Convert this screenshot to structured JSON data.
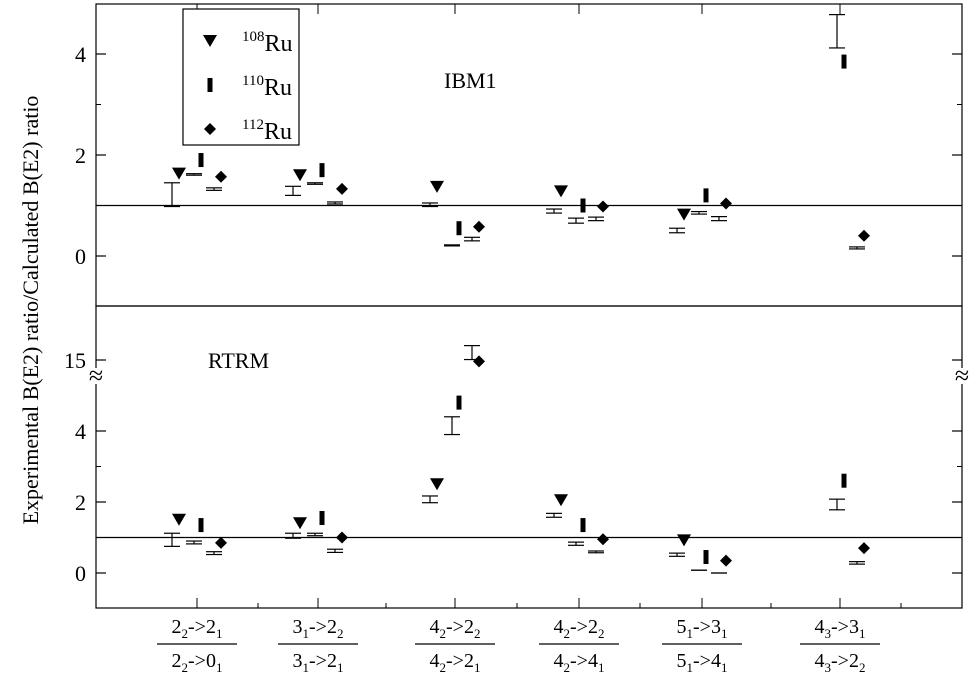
{
  "chart_data": [
    {
      "panel": "top",
      "type": "scatter",
      "tag": "IBM1",
      "ylim": [
        -1,
        5
      ],
      "y_ticks": [
        0,
        2,
        4
      ],
      "reference_line": 1,
      "categories": [
        "2_2->2_1 / 2_2->0_1",
        "3_1->2_2 / 3_1->2_1",
        "4_2->2_2 / 4_2->2_1",
        "4_2->2_2 / 4_2->4_1",
        "5_1->3_1 / 5_1->4_1",
        "4_3->3_1 / 4_3->2_2"
      ],
      "series": [
        {
          "name": "108Ru",
          "marker": "triangle-down",
          "values": [
            1.63,
            1.6,
            1.37,
            1.28,
            0.82,
            null
          ],
          "error_lo": [
            0.98,
            1.2,
            0.98,
            0.85,
            0.46,
            null
          ],
          "error_hi": [
            1.45,
            1.38,
            1.05,
            0.93,
            0.55,
            null
          ]
        },
        {
          "name": "110Ru",
          "marker": "bar",
          "values": [
            1.9,
            1.7,
            0.55,
            1.0,
            1.2,
            3.85
          ],
          "error_lo": [
            1.6,
            1.42,
            0.2,
            0.65,
            0.83,
            4.12
          ],
          "error_hi": [
            1.63,
            1.45,
            0.22,
            0.75,
            0.88,
            4.78
          ]
        },
        {
          "name": "112Ru",
          "marker": "diamond",
          "values": [
            1.57,
            1.33,
            0.58,
            0.98,
            1.04,
            0.4
          ],
          "error_lo": [
            1.3,
            1.03,
            0.3,
            0.7,
            0.7,
            0.14
          ],
          "error_hi": [
            1.35,
            1.07,
            0.37,
            0.77,
            0.78,
            0.18
          ]
        }
      ]
    },
    {
      "panel": "bottom",
      "type": "scatter",
      "tag": "RTRM",
      "ylim": [
        -1,
        15
      ],
      "y_ticks": [
        0,
        2,
        4,
        15
      ],
      "axis_break": "approx. 5 to 15",
      "reference_line": 1,
      "categories": [
        "2_2->2_1 / 2_2->0_1",
        "3_1->2_2 / 3_1->2_1",
        "4_2->2_2 / 4_2->2_1",
        "4_2->2_2 / 4_2->4_1",
        "5_1->3_1 / 5_1->4_1",
        "4_3->3_1 / 4_3->2_2"
      ],
      "series": [
        {
          "name": "108Ru",
          "marker": "triangle-down",
          "values": [
            1.5,
            1.4,
            2.5,
            2.05,
            0.92,
            null
          ],
          "error_lo": [
            0.75,
            0.98,
            1.98,
            1.57,
            0.47,
            null
          ],
          "error_hi": [
            1.12,
            1.12,
            2.17,
            1.68,
            0.56,
            null
          ]
        },
        {
          "name": "110Ru",
          "marker": "bar",
          "values": [
            1.35,
            1.55,
            4.8,
            1.35,
            0.45,
            2.6
          ],
          "error_lo": [
            0.82,
            1.05,
            3.9,
            0.78,
            0.08,
            1.78
          ],
          "error_hi": [
            0.9,
            1.12,
            4.4,
            0.87,
            0.08,
            2.08
          ]
        },
        {
          "name": "112Ru",
          "marker": "diamond",
          "values": [
            0.85,
            1.0,
            14.85,
            0.95,
            0.35,
            0.7
          ],
          "error_lo": [
            0.52,
            0.58,
            15.05,
            0.57,
            0.0,
            0.25
          ],
          "error_hi": [
            0.6,
            0.67,
            16.6,
            0.62,
            0.0,
            0.32
          ]
        }
      ]
    }
  ],
  "ylabel": "Experimental B(E2) ratio/Calculated B(E2) ratio",
  "legend": [
    {
      "mass": "108",
      "element": "Ru",
      "marker": "triangle-down"
    },
    {
      "mass": "110",
      "element": "Ru",
      "marker": "bar"
    },
    {
      "mass": "112",
      "element": "Ru",
      "marker": "diamond"
    }
  ],
  "x_labels": [
    {
      "num": [
        [
          "2",
          "2"
        ],
        [
          "->2",
          "1"
        ]
      ],
      "den": [
        [
          "2",
          "2"
        ],
        [
          "->0",
          "1"
        ]
      ]
    },
    {
      "num": [
        [
          "3",
          "1"
        ],
        [
          "->2",
          "2"
        ]
      ],
      "den": [
        [
          "3",
          "1"
        ],
        [
          "->2",
          "1"
        ]
      ]
    },
    {
      "num": [
        [
          "4",
          "2"
        ],
        [
          "->2",
          "2"
        ]
      ],
      "den": [
        [
          "4",
          "2"
        ],
        [
          "->2",
          "1"
        ]
      ]
    },
    {
      "num": [
        [
          "4",
          "2"
        ],
        [
          "->2",
          "2"
        ]
      ],
      "den": [
        [
          "4",
          "2"
        ],
        [
          "->4",
          "1"
        ]
      ]
    },
    {
      "num": [
        [
          "5",
          "1"
        ],
        [
          "->3",
          "1"
        ]
      ],
      "den": [
        [
          "5",
          "1"
        ],
        [
          "->4",
          "1"
        ]
      ]
    },
    {
      "num": [
        [
          "4",
          "3"
        ],
        [
          "->3",
          "1"
        ]
      ],
      "den": [
        [
          "4",
          "3"
        ],
        [
          "->2",
          "2"
        ]
      ]
    }
  ],
  "break_symbol": "≈"
}
